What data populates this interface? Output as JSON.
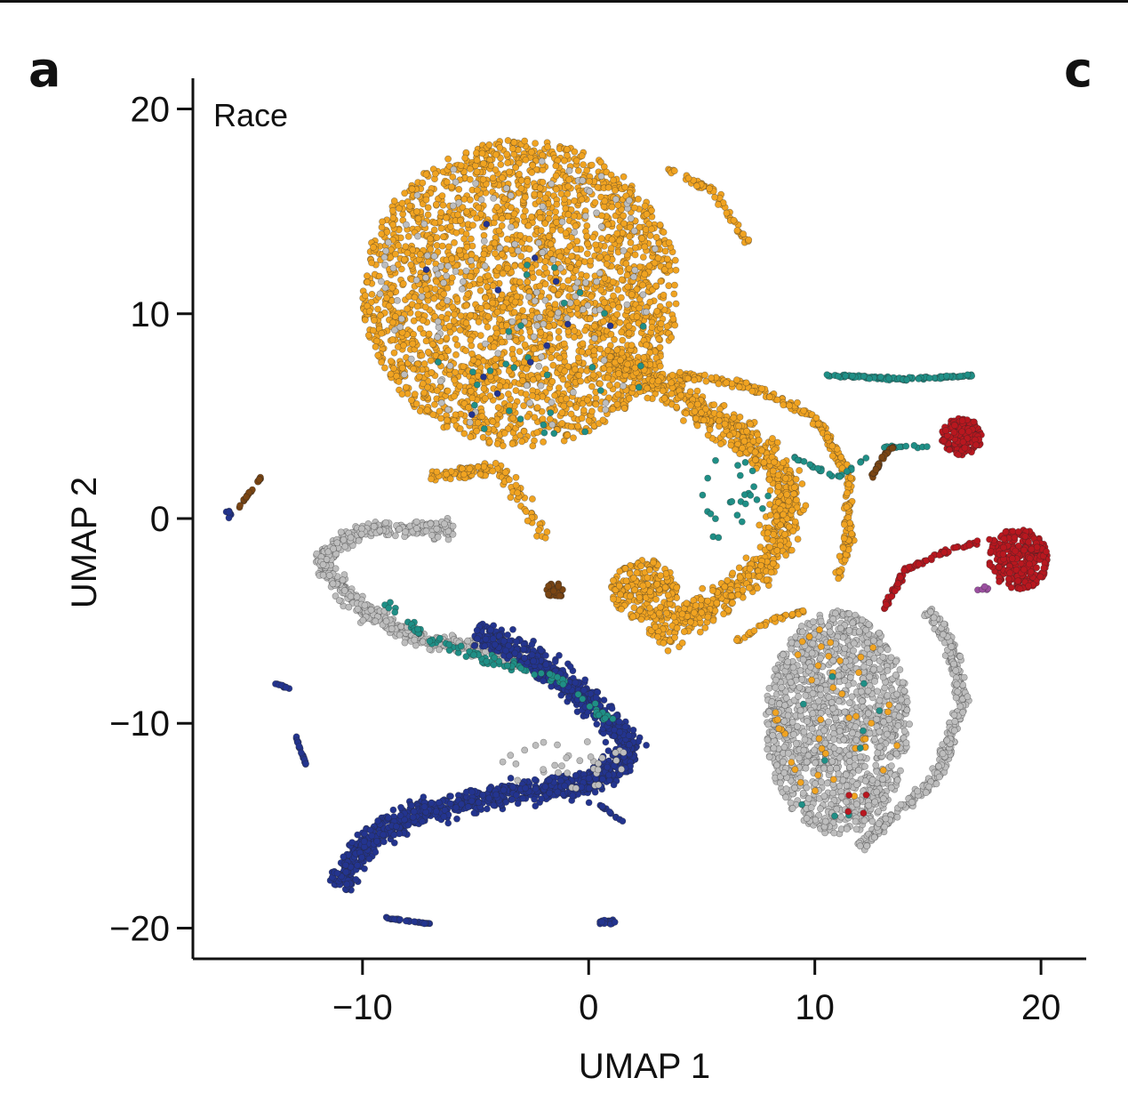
{
  "panels": {
    "left": "a",
    "right": "c"
  },
  "colors": {
    "orange": "#f0a321",
    "gray": "#bdbdbd",
    "navy": "#23348f",
    "teal": "#1f8f86",
    "red": "#b8171f",
    "brown": "#7a4513",
    "purple": "#9b4fa0"
  },
  "chart_data": {
    "type": "scatter",
    "title": "Race",
    "xlabel": "UMAP 1",
    "ylabel": "UMAP 2",
    "xlim": [
      -17.5,
      22
    ],
    "ylim": [
      -21.5,
      21.5
    ],
    "xticks": [
      -10,
      0,
      10,
      20
    ],
    "yticks": [
      20,
      10,
      0,
      -10,
      -20
    ],
    "xtick_labels": [
      "−10",
      "0",
      "10",
      "20"
    ],
    "ytick_labels": [
      "20",
      "10",
      "0",
      "−10",
      "−20"
    ],
    "grid": false,
    "legend": "none",
    "clusters": [
      {
        "color": "orange",
        "shape": "ellipse",
        "cx": -3,
        "cy": 11,
        "rx": 7,
        "ry": 7.5,
        "n": 2600
      },
      {
        "color": "orange",
        "shape": "path",
        "points": [
          [
            1,
            8
          ],
          [
            4,
            6
          ],
          [
            6,
            4.5
          ],
          [
            8,
            3
          ],
          [
            9,
            1
          ],
          [
            8,
            -2
          ],
          [
            6,
            -4
          ],
          [
            4,
            -5
          ],
          [
            3,
            -6
          ]
        ],
        "width": 2.2,
        "n": 900
      },
      {
        "color": "orange",
        "shape": "ellipse",
        "cx": 2.5,
        "cy": -3.5,
        "rx": 1.5,
        "ry": 1.5,
        "n": 220
      },
      {
        "color": "orange",
        "shape": "path",
        "points": [
          [
            4,
            7
          ],
          [
            7,
            6.5
          ],
          [
            10,
            5
          ],
          [
            11.5,
            2
          ],
          [
            11.5,
            -1
          ],
          [
            11,
            -3
          ]
        ],
        "width": 0.6,
        "n": 260
      },
      {
        "color": "orange",
        "shape": "path",
        "points": [
          [
            3.5,
            17
          ],
          [
            5.5,
            16
          ],
          [
            7,
            13.5
          ]
        ],
        "width": 0.5,
        "n": 60
      },
      {
        "color": "orange",
        "shape": "path",
        "points": [
          [
            -7,
            2
          ],
          [
            -4,
            2.5
          ],
          [
            -3,
            1
          ],
          [
            -2,
            -1
          ]
        ],
        "width": 1.0,
        "n": 120
      },
      {
        "color": "gray",
        "shape": "path",
        "points": [
          [
            -6,
            -0.5
          ],
          [
            -10,
            -0.5
          ],
          [
            -12,
            -2
          ],
          [
            -10,
            -4.5
          ],
          [
            -7,
            -6
          ],
          [
            -4,
            -6.5
          ],
          [
            -3,
            -7
          ]
        ],
        "width": 1.2,
        "n": 600
      },
      {
        "color": "navy",
        "shape": "path",
        "points": [
          [
            -5,
            -5.5
          ],
          [
            -3,
            -6.5
          ],
          [
            -1,
            -8
          ],
          [
            1,
            -10
          ],
          [
            2,
            -11.5
          ],
          [
            0,
            -13
          ],
          [
            -4,
            -13.5
          ],
          [
            -8,
            -14.5
          ],
          [
            -10,
            -16
          ],
          [
            -11,
            -18
          ]
        ],
        "width": 1.8,
        "n": 1400
      },
      {
        "color": "teal",
        "shape": "path",
        "points": [
          [
            -9,
            -4
          ],
          [
            -7,
            -6
          ],
          [
            -4,
            -7
          ],
          [
            -1,
            -8
          ],
          [
            1,
            -10
          ]
        ],
        "width": 0.7,
        "n": 90
      },
      {
        "color": "gray",
        "shape": "ellipse",
        "cx": 11,
        "cy": -10,
        "rx": 3.2,
        "ry": 5.5,
        "n": 1400
      },
      {
        "color": "gray",
        "shape": "path",
        "points": [
          [
            12,
            -16
          ],
          [
            14,
            -14
          ],
          [
            15.5,
            -12.5
          ],
          [
            16.5,
            -9
          ],
          [
            16,
            -6
          ],
          [
            15,
            -4.5
          ]
        ],
        "width": 0.8,
        "n": 360
      },
      {
        "color": "orange",
        "shape": "path",
        "points": [
          [
            6.5,
            -6
          ],
          [
            8,
            -5
          ],
          [
            9.5,
            -4.5
          ]
        ],
        "width": 0.3,
        "n": 40
      },
      {
        "color": "red",
        "shape": "ellipse",
        "cx": 16.5,
        "cy": 4,
        "rx": 0.9,
        "ry": 0.9,
        "n": 160
      },
      {
        "color": "red",
        "shape": "ellipse",
        "cx": 19,
        "cy": -2,
        "rx": 1.3,
        "ry": 1.5,
        "n": 300
      },
      {
        "color": "red",
        "shape": "path",
        "points": [
          [
            13,
            -4.5
          ],
          [
            14,
            -2.5
          ],
          [
            16,
            -1.5
          ],
          [
            18,
            -1
          ]
        ],
        "width": 0.3,
        "n": 90
      },
      {
        "color": "teal",
        "shape": "path",
        "points": [
          [
            10.5,
            7
          ],
          [
            14,
            6.8
          ],
          [
            17,
            7
          ]
        ],
        "width": 0.2,
        "n": 120
      },
      {
        "color": "teal",
        "shape": "path",
        "points": [
          [
            9,
            3
          ],
          [
            11,
            2
          ],
          [
            13,
            3.5
          ],
          [
            15,
            3.5
          ]
        ],
        "width": 0.2,
        "n": 40
      },
      {
        "color": "brown",
        "shape": "path",
        "points": [
          [
            12.5,
            2
          ],
          [
            13,
            3
          ],
          [
            13.5,
            3.5
          ]
        ],
        "width": 0.2,
        "n": 40
      },
      {
        "color": "brown",
        "shape": "path",
        "points": [
          [
            -15.5,
            0.5
          ],
          [
            -14.5,
            2
          ]
        ],
        "width": 0.1,
        "n": 25
      },
      {
        "color": "brown",
        "shape": "ellipse",
        "cx": -1.5,
        "cy": -3.5,
        "rx": 0.4,
        "ry": 0.4,
        "n": 30
      },
      {
        "color": "navy",
        "shape": "path",
        "points": [
          [
            -9,
            -19.5
          ],
          [
            -7,
            -19.8
          ]
        ],
        "width": 0.1,
        "n": 30
      },
      {
        "color": "navy",
        "shape": "ellipse",
        "cx": 0.8,
        "cy": -19.7,
        "rx": 0.4,
        "ry": 0.15,
        "n": 20
      },
      {
        "color": "navy",
        "shape": "path",
        "points": [
          [
            -13,
            -10.5
          ],
          [
            -12.5,
            -12
          ]
        ],
        "width": 0.1,
        "n": 20
      },
      {
        "color": "navy",
        "shape": "path",
        "points": [
          [
            -14,
            -8
          ],
          [
            -13.2,
            -8.3
          ]
        ],
        "width": 0.1,
        "n": 12
      },
      {
        "color": "navy",
        "shape": "path",
        "points": [
          [
            0.5,
            -14
          ],
          [
            1.5,
            -14.8
          ]
        ],
        "width": 0.1,
        "n": 15
      },
      {
        "color": "navy",
        "shape": "ellipse",
        "cx": -16,
        "cy": 0.2,
        "rx": 0.2,
        "ry": 0.2,
        "n": 8
      },
      {
        "color": "purple",
        "shape": "ellipse",
        "cx": 17.5,
        "cy": -3.5,
        "rx": 0.3,
        "ry": 0.2,
        "n": 5
      }
    ]
  }
}
